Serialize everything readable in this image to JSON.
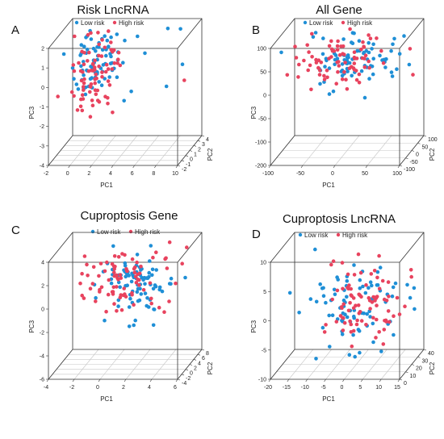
{
  "colors": {
    "low": "#1f8fd6",
    "high": "#e8435e"
  },
  "chart_data": [
    {
      "type": "scatter",
      "panel": "A",
      "title": "Risk LncRNA",
      "legend": [
        "Low risk",
        "High risk"
      ],
      "legend_placement": "top",
      "xlabel": "PC1",
      "ylabel": "PC2",
      "zlabel": "PC3",
      "xlim": [
        -2,
        10
      ],
      "ylim": [
        -3,
        4
      ],
      "zlim": [
        -4,
        2
      ],
      "xticks": [
        "-2",
        "0",
        "2",
        "4",
        "6",
        "8",
        "10"
      ],
      "yticks": [
        "-2",
        "-1",
        "0",
        "1",
        "2",
        "3",
        "4"
      ],
      "zticks": [
        "-4",
        "-3",
        "-2",
        "-1",
        "0",
        "1",
        "2"
      ],
      "series": [
        {
          "name": "Low risk",
          "center": [
            1.5,
            0.5,
            0.6
          ],
          "spread": [
            1.3,
            1.0,
            0.9
          ],
          "n": 80,
          "seed": 11,
          "extra": [
            [
              8.5,
              2.5,
              1.8
            ],
            [
              9,
              1.5,
              0.2
            ],
            [
              7,
              3.5,
              1.6
            ],
            [
              8,
              0,
              -0.6
            ],
            [
              6,
              0,
              1.1
            ]
          ]
        },
        {
          "name": "High risk",
          "center": [
            1.0,
            0.3,
            0.0
          ],
          "spread": [
            1.2,
            1.0,
            1.0
          ],
          "n": 80,
          "seed": 23,
          "extra": [
            [
              9.5,
              0.5,
              -0.4
            ]
          ]
        }
      ]
    },
    {
      "type": "scatter",
      "panel": "B",
      "title": "All Gene",
      "legend": [
        "Low risk",
        "High risk"
      ],
      "legend_placement": "top",
      "xlabel": "PC1",
      "ylabel": "PC2",
      "zlabel": "PC3",
      "xlim": [
        -100,
        100
      ],
      "ylim": [
        -100,
        100
      ],
      "zlim": [
        -200,
        100
      ],
      "xticks": [
        "-100",
        "-50",
        "0",
        "50",
        "100"
      ],
      "yticks": [
        "-100",
        "-50",
        "0",
        "50",
        "100"
      ],
      "zticks": [
        "-200",
        "-100",
        "-50",
        "0",
        "50",
        "100"
      ],
      "series": [
        {
          "name": "Low risk",
          "center": [
            5,
            10,
            30
          ],
          "spread": [
            40,
            40,
            30
          ],
          "n": 80,
          "seed": 31,
          "extra": [
            [
              20,
              40,
              -80
            ],
            [
              60,
              70,
              60
            ],
            [
              -20,
              -40,
              -40
            ]
          ]
        },
        {
          "name": "High risk",
          "center": [
            -10,
            0,
            30
          ],
          "spread": [
            40,
            40,
            30
          ],
          "n": 80,
          "seed": 47,
          "extra": []
        }
      ]
    },
    {
      "type": "scatter",
      "panel": "C",
      "title": "Cuproptosis Gene",
      "legend": [
        "Low risk",
        "High risk"
      ],
      "legend_placement": "top",
      "xlabel": "PC1",
      "ylabel": "PC2",
      "zlabel": "PC3",
      "xlim": [
        -4,
        6
      ],
      "ylim": [
        -4,
        8
      ],
      "zlim": [
        -6,
        4
      ],
      "xticks": [
        "-4",
        "-2",
        "0",
        "2",
        "4",
        "6"
      ],
      "yticks": [
        "-4",
        "-2",
        "0",
        "2",
        "4",
        "6",
        "8"
      ],
      "zticks": [
        "-6",
        "-4",
        "-2",
        "0",
        "2",
        "4"
      ],
      "series": [
        {
          "name": "Low risk",
          "center": [
            2,
            2,
            1.0
          ],
          "spread": [
            1.5,
            2.0,
            1.3
          ],
          "n": 85,
          "seed": 53,
          "extra": [
            [
              5.5,
              3,
              1.2
            ],
            [
              -1,
              4,
              1.5
            ]
          ]
        },
        {
          "name": "High risk",
          "center": [
            1,
            1,
            1.3
          ],
          "spread": [
            1.8,
            2.0,
            1.4
          ],
          "n": 85,
          "seed": 67,
          "extra": []
        }
      ]
    },
    {
      "type": "scatter",
      "panel": "D",
      "title": "Cuproptosis LncRNA",
      "legend": [
        "Low risk",
        "High risk"
      ],
      "legend_placement": "top",
      "xlabel": "PC1",
      "ylabel": "PC2",
      "zlabel": "PC3",
      "xlim": [
        -20,
        15
      ],
      "ylim": [
        0,
        40
      ],
      "zlim": [
        -10,
        10
      ],
      "xticks": [
        "-20",
        "-15",
        "-10",
        "-5",
        "0",
        "5",
        "10",
        "15"
      ],
      "yticks": [
        "0",
        "10",
        "20",
        "30",
        "40"
      ],
      "zticks": [
        "-10",
        "-5",
        "0",
        "5",
        "10"
      ],
      "series": [
        {
          "name": "Low risk",
          "center": [
            0,
            18,
            0
          ],
          "spread": [
            7,
            8,
            4
          ],
          "n": 85,
          "seed": 71,
          "extra": [
            [
              13,
              36,
              1
            ],
            [
              -12,
              25,
              9
            ]
          ]
        },
        {
          "name": "High risk",
          "center": [
            3,
            18,
            1
          ],
          "spread": [
            6,
            8,
            3.5
          ],
          "n": 85,
          "seed": 89,
          "extra": []
        }
      ]
    }
  ]
}
